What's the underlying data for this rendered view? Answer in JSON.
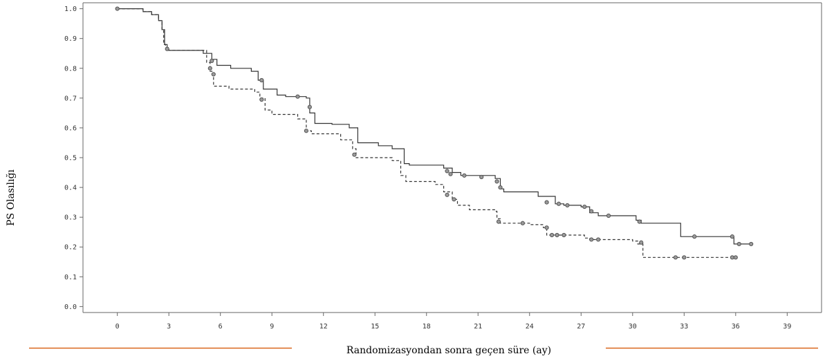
{
  "chart_data": {
    "type": "line",
    "title": "",
    "xlabel": "Randomizasyondan sonra geçen süre (ay)",
    "ylabel": "PS Olasılığı",
    "xlim": [
      -2,
      41
    ],
    "ylim": [
      -0.02,
      1.02
    ],
    "xticks": [
      0,
      3,
      6,
      9,
      12,
      15,
      18,
      21,
      24,
      27,
      30,
      33,
      36,
      39
    ],
    "yticks": [
      "0.0",
      "0.1",
      "0.2",
      "0.3",
      "0.4",
      "0.5",
      "0.6",
      "0.7",
      "0.8",
      "0.9",
      "1.0"
    ],
    "grid": false,
    "legend": "none",
    "colors": {
      "solid": "#333333",
      "dashed": "#333333",
      "censor": "#555555",
      "rule": "#d9671c"
    },
    "series": [
      {
        "style": "solid",
        "steps": [
          [
            0,
            1.0
          ],
          [
            1.5,
            0.99
          ],
          [
            2.0,
            0.98
          ],
          [
            2.4,
            0.96
          ],
          [
            2.6,
            0.93
          ],
          [
            2.75,
            0.88
          ],
          [
            2.9,
            0.86
          ],
          [
            5.0,
            0.85
          ],
          [
            5.5,
            0.83
          ],
          [
            5.8,
            0.81
          ],
          [
            6.6,
            0.8
          ],
          [
            7.8,
            0.79
          ],
          [
            8.2,
            0.76
          ],
          [
            8.5,
            0.73
          ],
          [
            9.3,
            0.71
          ],
          [
            9.8,
            0.705
          ],
          [
            11.0,
            0.7
          ],
          [
            11.2,
            0.65
          ],
          [
            11.5,
            0.615
          ],
          [
            12.5,
            0.612
          ],
          [
            13.5,
            0.6
          ],
          [
            14.0,
            0.55
          ],
          [
            15.2,
            0.54
          ],
          [
            16.0,
            0.53
          ],
          [
            16.7,
            0.48
          ],
          [
            17.0,
            0.475
          ],
          [
            19.0,
            0.465
          ],
          [
            19.5,
            0.45
          ],
          [
            20.0,
            0.44
          ],
          [
            22.0,
            0.43
          ],
          [
            22.3,
            0.395
          ],
          [
            22.5,
            0.385
          ],
          [
            24.5,
            0.37
          ],
          [
            25.5,
            0.345
          ],
          [
            26.0,
            0.34
          ],
          [
            27.0,
            0.335
          ],
          [
            27.5,
            0.315
          ],
          [
            28.0,
            0.305
          ],
          [
            30.2,
            0.29
          ],
          [
            30.5,
            0.28
          ],
          [
            32.8,
            0.235
          ],
          [
            35.9,
            0.21
          ],
          [
            36.9,
            0.21
          ]
        ],
        "censors": [
          [
            0,
            1.0
          ],
          [
            2.9,
            0.865
          ],
          [
            5.5,
            0.825
          ],
          [
            8.4,
            0.76
          ],
          [
            10.5,
            0.705
          ],
          [
            11.2,
            0.67
          ],
          [
            19.2,
            0.455
          ],
          [
            19.4,
            0.445
          ],
          [
            20.2,
            0.44
          ],
          [
            21.2,
            0.435
          ],
          [
            22.1,
            0.42
          ],
          [
            22.3,
            0.4
          ],
          [
            25.0,
            0.35
          ],
          [
            25.7,
            0.345
          ],
          [
            26.2,
            0.34
          ],
          [
            27.2,
            0.335
          ],
          [
            27.6,
            0.32
          ],
          [
            28.6,
            0.305
          ],
          [
            30.4,
            0.285
          ],
          [
            33.6,
            0.235
          ],
          [
            35.8,
            0.235
          ],
          [
            36.2,
            0.21
          ],
          [
            36.9,
            0.21
          ]
        ]
      },
      {
        "style": "dashed",
        "steps": [
          [
            0,
            1.0
          ],
          [
            1.5,
            0.99
          ],
          [
            2.0,
            0.98
          ],
          [
            2.4,
            0.96
          ],
          [
            2.6,
            0.93
          ],
          [
            2.7,
            0.88
          ],
          [
            2.8,
            0.87
          ],
          [
            3.0,
            0.86
          ],
          [
            5.2,
            0.82
          ],
          [
            5.4,
            0.79
          ],
          [
            5.6,
            0.74
          ],
          [
            6.5,
            0.73
          ],
          [
            8.0,
            0.72
          ],
          [
            8.3,
            0.7
          ],
          [
            8.6,
            0.66
          ],
          [
            9.0,
            0.645
          ],
          [
            10.5,
            0.63
          ],
          [
            11.0,
            0.59
          ],
          [
            11.3,
            0.58
          ],
          [
            13.0,
            0.56
          ],
          [
            13.7,
            0.53
          ],
          [
            13.9,
            0.5
          ],
          [
            16.0,
            0.49
          ],
          [
            16.5,
            0.44
          ],
          [
            16.8,
            0.42
          ],
          [
            18.5,
            0.41
          ],
          [
            19.0,
            0.385
          ],
          [
            19.5,
            0.36
          ],
          [
            19.8,
            0.34
          ],
          [
            20.5,
            0.325
          ],
          [
            22.0,
            0.32
          ],
          [
            22.1,
            0.295
          ],
          [
            22.3,
            0.28
          ],
          [
            24.0,
            0.275
          ],
          [
            24.8,
            0.265
          ],
          [
            25.0,
            0.24
          ],
          [
            26.5,
            0.24
          ],
          [
            27.2,
            0.23
          ],
          [
            27.5,
            0.225
          ],
          [
            30.0,
            0.22
          ],
          [
            30.3,
            0.21
          ],
          [
            30.6,
            0.165
          ],
          [
            36.0,
            0.165
          ]
        ],
        "censors": [
          [
            5.4,
            0.8
          ],
          [
            5.6,
            0.78
          ],
          [
            8.4,
            0.695
          ],
          [
            11.0,
            0.59
          ],
          [
            13.8,
            0.51
          ],
          [
            19.2,
            0.375
          ],
          [
            19.6,
            0.36
          ],
          [
            22.2,
            0.285
          ],
          [
            23.6,
            0.28
          ],
          [
            25.0,
            0.265
          ],
          [
            25.3,
            0.24
          ],
          [
            25.6,
            0.24
          ],
          [
            26.0,
            0.24
          ],
          [
            27.6,
            0.225
          ],
          [
            28.0,
            0.225
          ],
          [
            30.5,
            0.215
          ],
          [
            32.5,
            0.165
          ],
          [
            33.0,
            0.165
          ],
          [
            35.8,
            0.165
          ],
          [
            36.0,
            0.165
          ]
        ]
      }
    ]
  }
}
